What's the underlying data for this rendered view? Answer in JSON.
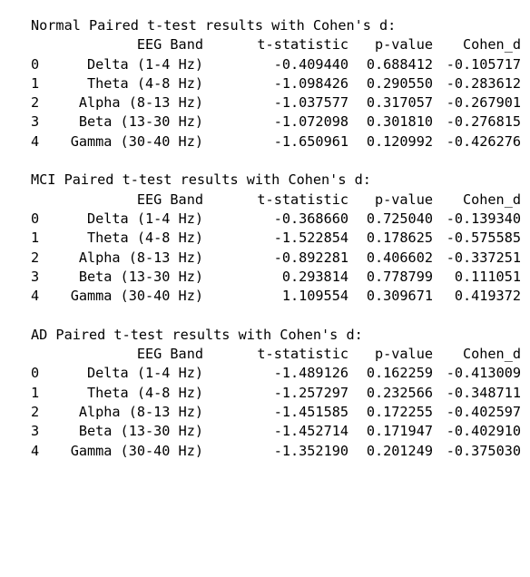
{
  "sections": [
    {
      "title": "Normal Paired t-test results with Cohen's d:",
      "headers": [
        "EEG Band",
        "t-statistic",
        "p-value",
        "Cohen_d"
      ],
      "rows": [
        {
          "index": "0",
          "band": "Delta (1-4 Hz)",
          "t": "-0.409440",
          "p": "0.688412",
          "d": "-0.105717"
        },
        {
          "index": "1",
          "band": "Theta (4-8 Hz)",
          "t": "-1.098426",
          "p": "0.290550",
          "d": "-0.283612"
        },
        {
          "index": "2",
          "band": "Alpha (8-13 Hz)",
          "t": "-1.037577",
          "p": "0.317057",
          "d": "-0.267901"
        },
        {
          "index": "3",
          "band": "Beta (13-30 Hz)",
          "t": "-1.072098",
          "p": "0.301810",
          "d": "-0.276815"
        },
        {
          "index": "4",
          "band": "Gamma (30-40 Hz)",
          "t": "-1.650961",
          "p": "0.120992",
          "d": "-0.426276"
        }
      ]
    },
    {
      "title": "MCI Paired t-test results with Cohen's d:",
      "headers": [
        "EEG Band",
        "t-statistic",
        "p-value",
        "Cohen_d"
      ],
      "rows": [
        {
          "index": "0",
          "band": "Delta (1-4 Hz)",
          "t": "-0.368660",
          "p": "0.725040",
          "d": "-0.139340"
        },
        {
          "index": "1",
          "band": "Theta (4-8 Hz)",
          "t": "-1.522854",
          "p": "0.178625",
          "d": "-0.575585"
        },
        {
          "index": "2",
          "band": "Alpha (8-13 Hz)",
          "t": "-0.892281",
          "p": "0.406602",
          "d": "-0.337251"
        },
        {
          "index": "3",
          "band": "Beta (13-30 Hz)",
          "t": "0.293814",
          "p": "0.778799",
          "d": "0.111051"
        },
        {
          "index": "4",
          "band": "Gamma (30-40 Hz)",
          "t": "1.109554",
          "p": "0.309671",
          "d": "0.419372"
        }
      ]
    },
    {
      "title": "AD Paired t-test results with Cohen's d:",
      "headers": [
        "EEG Band",
        "t-statistic",
        "p-value",
        "Cohen_d"
      ],
      "rows": [
        {
          "index": "0",
          "band": "Delta (1-4 Hz)",
          "t": "-1.489126",
          "p": "0.162259",
          "d": "-0.413009"
        },
        {
          "index": "1",
          "band": "Theta (4-8 Hz)",
          "t": "-1.257297",
          "p": "0.232566",
          "d": "-0.348711"
        },
        {
          "index": "2",
          "band": "Alpha (8-13 Hz)",
          "t": "-1.451585",
          "p": "0.172255",
          "d": "-0.402597"
        },
        {
          "index": "3",
          "band": "Beta (13-30 Hz)",
          "t": "-1.452714",
          "p": "0.171947",
          "d": "-0.402910"
        },
        {
          "index": "4",
          "band": "Gamma (30-40 Hz)",
          "t": "-1.352190",
          "p": "0.201249",
          "d": "-0.375030"
        }
      ]
    }
  ]
}
